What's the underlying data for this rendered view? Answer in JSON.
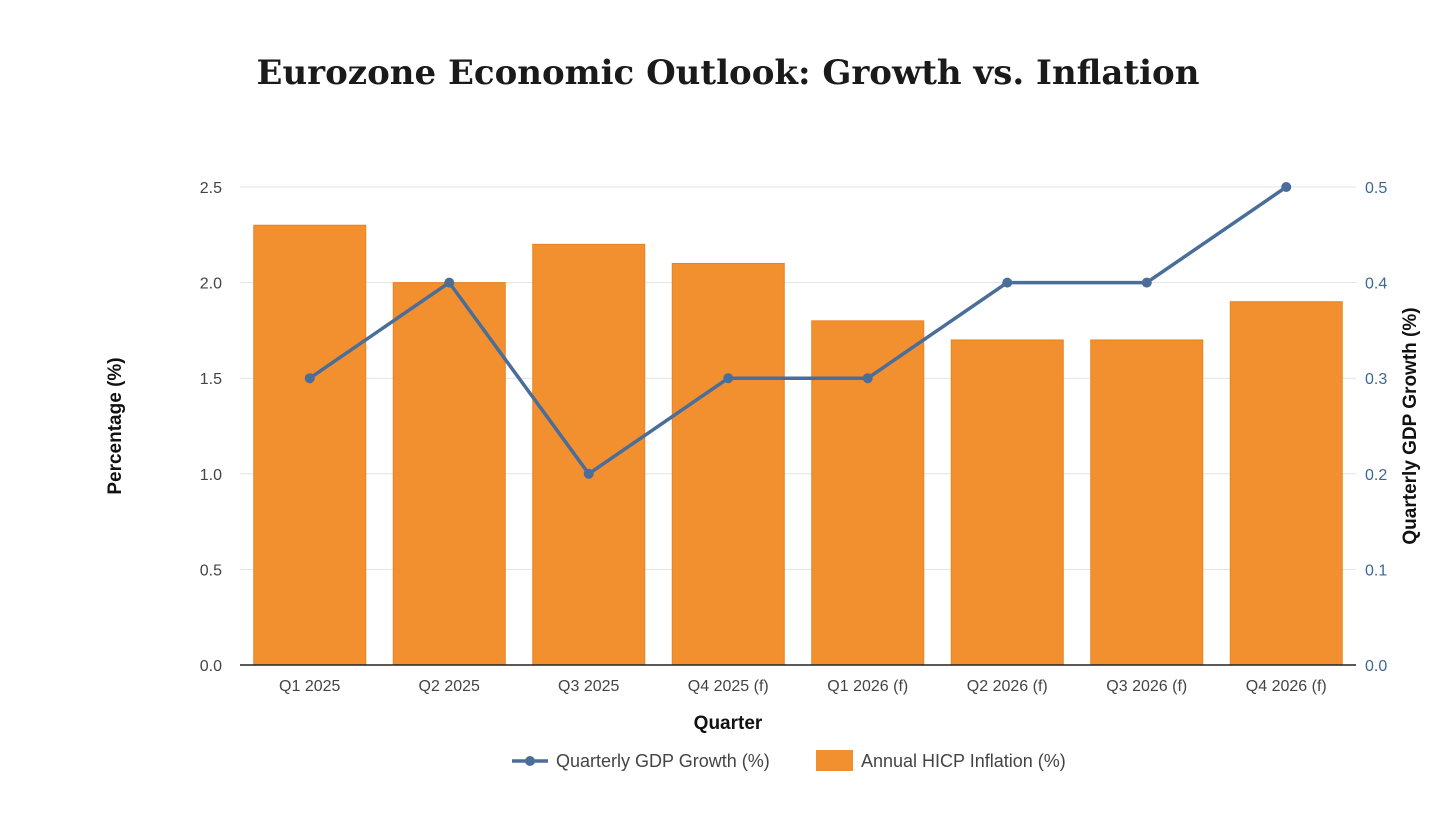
{
  "chart_data": {
    "type": "bar",
    "title": "Eurozone Economic Outlook: Growth vs. Inflation",
    "xlabel": "Quarter",
    "ylabel": "Percentage (%)",
    "ylabel_right": "Quarterly GDP Growth (%)",
    "categories": [
      "Q1 2025",
      "Q2 2025",
      "Q3 2025",
      "Q4 2025 (f)",
      "Q1 2026 (f)",
      "Q2 2026 (f)",
      "Q3 2026 (f)",
      "Q4 2026 (f)"
    ],
    "ylim": [
      0,
      2.5
    ],
    "ylim_right": [
      0,
      0.5
    ],
    "yticks": [
      "0.0",
      "0.5",
      "1.0",
      "1.5",
      "2.0",
      "2.5"
    ],
    "yticks_right": [
      "0.0",
      "0.1",
      "0.2",
      "0.3",
      "0.4",
      "0.5"
    ],
    "grid": true,
    "legend_position": "bottom-center",
    "series": [
      {
        "name": "Quarterly GDP Growth (%)",
        "type": "line",
        "axis": "right",
        "color": "#4a6e99",
        "values": [
          0.3,
          0.4,
          0.2,
          0.3,
          0.3,
          0.4,
          0.4,
          0.5
        ]
      },
      {
        "name": "Annual HICP Inflation (%)",
        "type": "bar",
        "axis": "left",
        "color": "#f28f2e",
        "values": [
          2.3,
          2.0,
          2.2,
          2.1,
          1.8,
          1.7,
          1.7,
          1.9
        ]
      }
    ]
  }
}
